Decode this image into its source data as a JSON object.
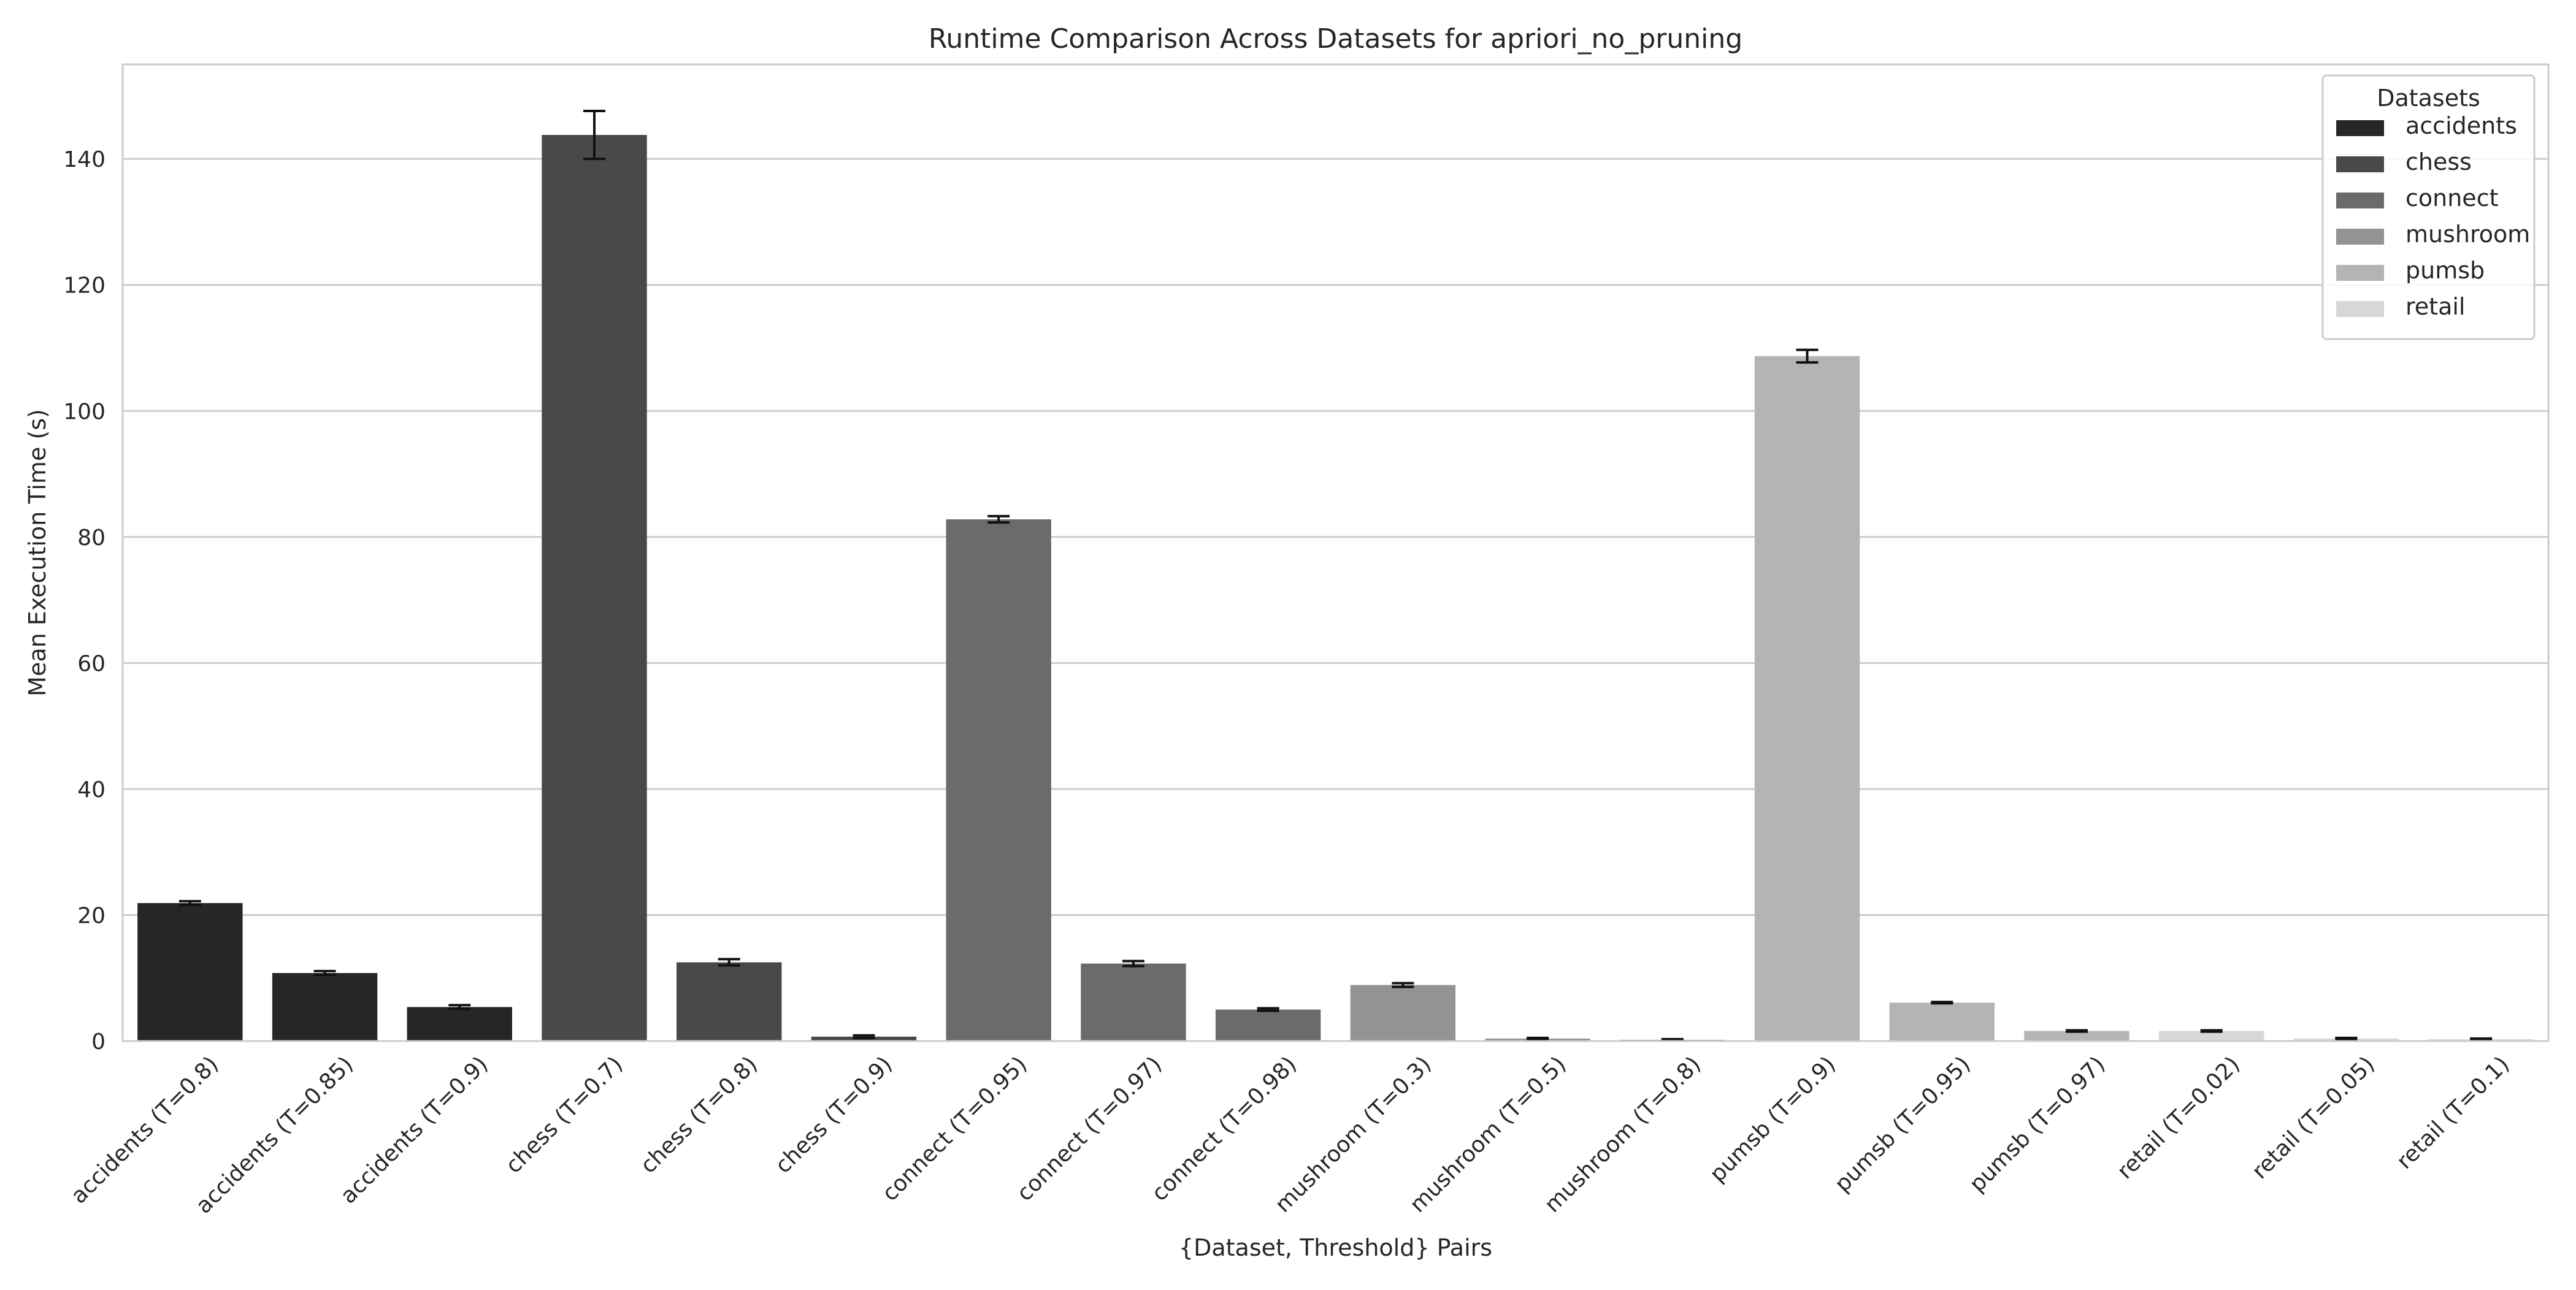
{
  "chart_data": {
    "type": "bar",
    "title": "Runtime Comparison Across Datasets for apriori_no_pruning",
    "xlabel": "{Dataset, Threshold} Pairs",
    "ylabel": "Mean Execution Time (s)",
    "ylim": [
      0,
      155
    ],
    "yticks": [
      0,
      20,
      40,
      60,
      80,
      100,
      120,
      140
    ],
    "grid": "horizontal",
    "legend": {
      "title": "Datasets",
      "placement": "top-right",
      "entries": [
        {
          "name": "accidents",
          "color": "#262626"
        },
        {
          "name": "chess",
          "color": "#494949"
        },
        {
          "name": "connect",
          "color": "#6b6b6b"
        },
        {
          "name": "mushroom",
          "color": "#939393"
        },
        {
          "name": "pumsb",
          "color": "#b4b4b4"
        },
        {
          "name": "retail",
          "color": "#d7d7d7"
        }
      ]
    },
    "categories": [
      "accidents (T=0.8)",
      "accidents (T=0.85)",
      "accidents (T=0.9)",
      "chess (T=0.7)",
      "chess (T=0.8)",
      "chess (T=0.9)",
      "connect (T=0.95)",
      "connect (T=0.97)",
      "connect (T=0.98)",
      "mushroom (T=0.3)",
      "mushroom (T=0.5)",
      "mushroom (T=0.8)",
      "pumsb (T=0.9)",
      "pumsb (T=0.95)",
      "pumsb (T=0.97)",
      "retail (T=0.02)",
      "retail (T=0.05)",
      "retail (T=0.1)"
    ],
    "dataset": [
      "accidents",
      "accidents",
      "accidents",
      "chess",
      "chess",
      "chess",
      "connect",
      "connect",
      "connect",
      "mushroom",
      "mushroom",
      "mushroom",
      "pumsb",
      "pumsb",
      "pumsb",
      "retail",
      "retail",
      "retail"
    ],
    "values": [
      21.9,
      10.8,
      5.4,
      143.8,
      12.5,
      0.7,
      82.8,
      12.3,
      5.0,
      8.9,
      0.4,
      0.2,
      108.7,
      6.1,
      1.6,
      1.6,
      0.4,
      0.3
    ],
    "error": [
      0.3,
      0.3,
      0.3,
      3.8,
      0.5,
      0.2,
      0.5,
      0.4,
      0.2,
      0.3,
      0.1,
      0.1,
      1.0,
      0.1,
      0.1,
      0.1,
      0.1,
      0.1
    ]
  }
}
